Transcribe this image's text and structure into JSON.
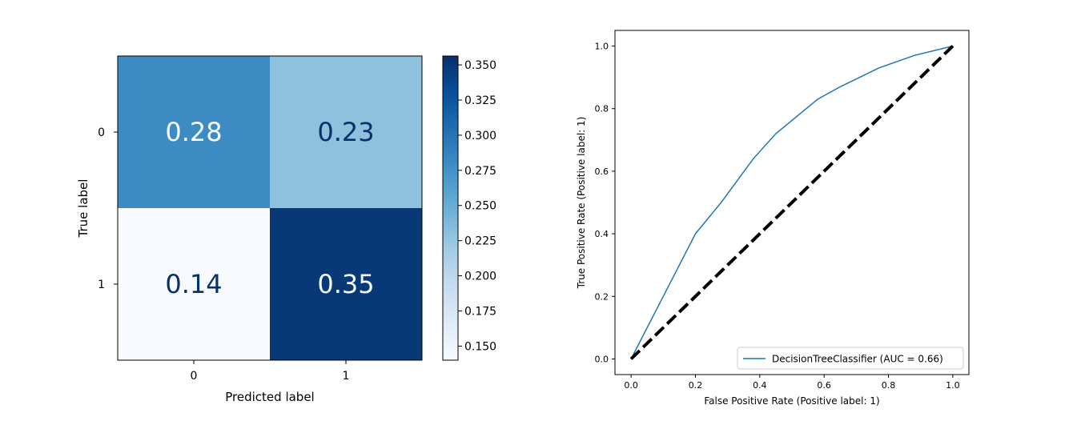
{
  "chart_data": [
    {
      "type": "heatmap",
      "xlabel": "Predicted label",
      "ylabel": "True label",
      "x_categories": [
        "0",
        "1"
      ],
      "y_categories": [
        "0",
        "1"
      ],
      "values": [
        [
          0.28,
          0.23
        ],
        [
          0.14,
          0.35
        ]
      ],
      "cell_labels": [
        [
          "0.28",
          "0.23"
        ],
        [
          "0.14",
          "0.35"
        ]
      ],
      "colormap": "Blues",
      "colors": {
        "min": "#f7fbff",
        "max": "#08306b"
      },
      "colorbar": {
        "range": [
          0.14,
          0.3563
        ],
        "ticks": [
          0.15,
          0.175,
          0.2,
          0.225,
          0.25,
          0.275,
          0.3,
          0.325,
          0.35
        ],
        "tick_labels": [
          "0.150",
          "0.175",
          "0.200",
          "0.225",
          "0.250",
          "0.275",
          "0.300",
          "0.325",
          "0.350"
        ]
      }
    },
    {
      "type": "line",
      "xlabel": "False Positive Rate (Positive label: 1)",
      "ylabel": "True Positive Rate (Positive label: 1)",
      "xlim": [
        -0.05,
        1.05
      ],
      "ylim": [
        -0.05,
        1.05
      ],
      "x_ticks": [
        0.0,
        0.2,
        0.4,
        0.6,
        0.8,
        1.0
      ],
      "x_tick_labels": [
        "0.0",
        "0.2",
        "0.4",
        "0.6",
        "0.8",
        "1.0"
      ],
      "y_ticks": [
        0.0,
        0.2,
        0.4,
        0.6,
        0.8,
        1.0
      ],
      "y_tick_labels": [
        "0.0",
        "0.2",
        "0.4",
        "0.6",
        "0.8",
        "1.0"
      ],
      "legend_position": "lower-right",
      "series": [
        {
          "name": "DecisionTreeClassifier (AUC = 0.66)",
          "color": "#1f77b4",
          "style": "solid",
          "x": [
            0.0,
            0.05,
            0.1,
            0.15,
            0.2,
            0.28,
            0.38,
            0.45,
            0.58,
            0.65,
            0.77,
            0.88,
            1.0
          ],
          "y": [
            0.0,
            0.1,
            0.2,
            0.3,
            0.4,
            0.5,
            0.64,
            0.72,
            0.83,
            0.87,
            0.93,
            0.97,
            1.0
          ]
        },
        {
          "color": "#000000",
          "style": "dashed",
          "x": [
            0.0,
            1.0
          ],
          "y": [
            0.0,
            1.0
          ]
        }
      ]
    }
  ]
}
